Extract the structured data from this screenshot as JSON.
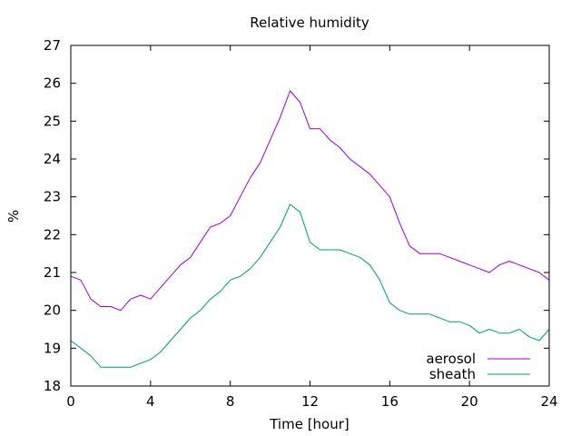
{
  "chart_data": {
    "type": "line",
    "title": "Relative humidity",
    "xlabel": "Time [hour]",
    "ylabel": "%",
    "xlim": [
      0,
      24
    ],
    "ylim": [
      18,
      27
    ],
    "xticks": [
      0,
      4,
      8,
      12,
      16,
      20,
      24
    ],
    "yticks": [
      18,
      19,
      20,
      21,
      22,
      23,
      24,
      25,
      26,
      27
    ],
    "grid": false,
    "legend_position": "bottom-right",
    "series": [
      {
        "name": "aerosol",
        "color": "#9400d3",
        "x": [
          0,
          0.5,
          1,
          1.5,
          2,
          2.5,
          3,
          3.5,
          4,
          4.5,
          5,
          5.5,
          6,
          6.5,
          7,
          7.5,
          8,
          8.5,
          9,
          9.5,
          10,
          10.5,
          11,
          11.5,
          12,
          12.5,
          13,
          13.5,
          14,
          14.5,
          15,
          15.5,
          16,
          16.5,
          17,
          17.5,
          18,
          18.5,
          19,
          19.5,
          20,
          20.5,
          21,
          21.5,
          22,
          22.5,
          23,
          23.5,
          24
        ],
        "y": [
          20.9,
          20.8,
          20.3,
          20.1,
          20.1,
          20.0,
          20.3,
          20.4,
          20.3,
          20.6,
          20.9,
          21.2,
          21.4,
          21.8,
          22.2,
          22.3,
          22.5,
          23.0,
          23.5,
          23.9,
          24.5,
          25.1,
          25.8,
          25.5,
          24.8,
          24.8,
          24.5,
          24.3,
          24.0,
          23.8,
          23.6,
          23.3,
          23.0,
          22.3,
          21.7,
          21.5,
          21.5,
          21.5,
          21.4,
          21.3,
          21.2,
          21.1,
          21.0,
          21.2,
          21.3,
          21.2,
          21.1,
          21.0,
          20.8
        ]
      },
      {
        "name": "sheath",
        "color": "#009e73",
        "x": [
          0,
          0.5,
          1,
          1.5,
          2,
          2.5,
          3,
          3.5,
          4,
          4.5,
          5,
          5.5,
          6,
          6.5,
          7,
          7.5,
          8,
          8.5,
          9,
          9.5,
          10,
          10.5,
          11,
          11.5,
          12,
          12.5,
          13,
          13.5,
          14,
          14.5,
          15,
          15.5,
          16,
          16.5,
          17,
          17.5,
          18,
          18.5,
          19,
          19.5,
          20,
          20.5,
          21,
          21.5,
          22,
          22.5,
          23,
          23.5,
          24
        ],
        "y": [
          19.2,
          19.0,
          18.8,
          18.5,
          18.5,
          18.5,
          18.5,
          18.6,
          18.7,
          18.9,
          19.2,
          19.5,
          19.8,
          20.0,
          20.3,
          20.5,
          20.8,
          20.9,
          21.1,
          21.4,
          21.8,
          22.2,
          22.8,
          22.6,
          21.8,
          21.6,
          21.6,
          21.6,
          21.5,
          21.4,
          21.2,
          20.8,
          20.2,
          20.0,
          19.9,
          19.9,
          19.9,
          19.8,
          19.7,
          19.7,
          19.6,
          19.4,
          19.5,
          19.4,
          19.4,
          19.5,
          19.3,
          19.2,
          19.5
        ]
      }
    ]
  }
}
